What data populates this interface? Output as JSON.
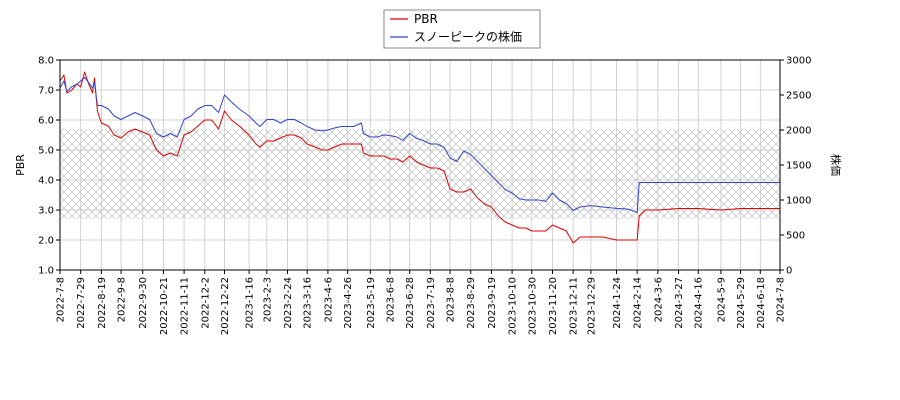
{
  "chart_data": {
    "type": "line",
    "title": "",
    "xlabel": "",
    "ylabel_left": "PBR",
    "ylabel_right": "株価",
    "ylim_left": [
      1.0,
      8.0
    ],
    "ylim_right": [
      0,
      3000
    ],
    "yticks_left": [
      "1.0",
      "2.0",
      "3.0",
      "4.0",
      "5.0",
      "6.0",
      "7.0",
      "8.0"
    ],
    "yticks_right": [
      "0",
      "500",
      "1000",
      "1500",
      "2000",
      "2500",
      "3000"
    ],
    "xlim": [
      "2022-07-08",
      "2024-07-08"
    ],
    "x_tick_labels": [
      "2022-7-8",
      "2022-7-29",
      "2022-8-19",
      "2022-9-8",
      "2022-9-30",
      "2022-10-21",
      "2022-11-11",
      "2022-12-2",
      "2022-12-22",
      "2023-1-16",
      "2023-2-3",
      "2023-2-24",
      "2023-3-16",
      "2023-4-6",
      "2023-4-26",
      "2023-5-19",
      "2023-6-8",
      "2023-6-28",
      "2023-7-19",
      "2023-8-8",
      "2023-8-29",
      "2023-9-19",
      "2023-10-10",
      "2023-10-30",
      "2023-11-20",
      "2023-12-11",
      "2023-12-29",
      "2024-1-24",
      "2024-2-14",
      "2024-3-6",
      "2024-3-27",
      "2024-4-16",
      "2024-5-9",
      "2024-5-29",
      "2024-6-18",
      "2024-7-8"
    ],
    "grid": true,
    "hatched_band_left": [
      2.7,
      5.7
    ],
    "legend": {
      "placement": "top-center",
      "entries": [
        "PBR",
        "スノーピークの株価"
      ]
    },
    "colors": {
      "PBR": "#dd0000",
      "stock": "#3344cc"
    },
    "series": [
      {
        "name": "PBR",
        "axis": "left",
        "points": [
          [
            "2022-07-08",
            7.3
          ],
          [
            "2022-07-12",
            7.5
          ],
          [
            "2022-07-15",
            6.9
          ],
          [
            "2022-07-20",
            7.0
          ],
          [
            "2022-07-25",
            7.2
          ],
          [
            "2022-07-29",
            7.1
          ],
          [
            "2022-08-02",
            7.6
          ],
          [
            "2022-08-05",
            7.3
          ],
          [
            "2022-08-10",
            6.9
          ],
          [
            "2022-08-12",
            7.4
          ],
          [
            "2022-08-15",
            6.3
          ],
          [
            "2022-08-19",
            5.9
          ],
          [
            "2022-08-26",
            5.8
          ],
          [
            "2022-09-01",
            5.5
          ],
          [
            "2022-09-08",
            5.4
          ],
          [
            "2022-09-15",
            5.6
          ],
          [
            "2022-09-22",
            5.7
          ],
          [
            "2022-09-30",
            5.6
          ],
          [
            "2022-10-07",
            5.5
          ],
          [
            "2022-10-14",
            5.0
          ],
          [
            "2022-10-21",
            4.8
          ],
          [
            "2022-10-28",
            4.9
          ],
          [
            "2022-11-04",
            4.8
          ],
          [
            "2022-11-11",
            5.5
          ],
          [
            "2022-11-18",
            5.6
          ],
          [
            "2022-11-25",
            5.8
          ],
          [
            "2022-12-02",
            6.0
          ],
          [
            "2022-12-09",
            6.0
          ],
          [
            "2022-12-16",
            5.7
          ],
          [
            "2022-12-22",
            6.3
          ],
          [
            "2022-12-29",
            6.0
          ],
          [
            "2023-01-06",
            5.8
          ],
          [
            "2023-01-16",
            5.5
          ],
          [
            "2023-01-23",
            5.2
          ],
          [
            "2023-01-27",
            5.1
          ],
          [
            "2023-02-03",
            5.3
          ],
          [
            "2023-02-10",
            5.3
          ],
          [
            "2023-02-17",
            5.4
          ],
          [
            "2023-02-24",
            5.5
          ],
          [
            "2023-03-03",
            5.5
          ],
          [
            "2023-03-10",
            5.4
          ],
          [
            "2023-03-16",
            5.2
          ],
          [
            "2023-03-24",
            5.1
          ],
          [
            "2023-03-31",
            5.0
          ],
          [
            "2023-04-06",
            5.0
          ],
          [
            "2023-04-13",
            5.1
          ],
          [
            "2023-04-20",
            5.2
          ],
          [
            "2023-04-26",
            5.2
          ],
          [
            "2023-05-02",
            5.2
          ],
          [
            "2023-05-10",
            5.2
          ],
          [
            "2023-05-12",
            4.9
          ],
          [
            "2023-05-19",
            4.8
          ],
          [
            "2023-05-26",
            4.8
          ],
          [
            "2023-06-02",
            4.8
          ],
          [
            "2023-06-08",
            4.7
          ],
          [
            "2023-06-15",
            4.7
          ],
          [
            "2023-06-21",
            4.6
          ],
          [
            "2023-06-28",
            4.8
          ],
          [
            "2023-07-05",
            4.6
          ],
          [
            "2023-07-12",
            4.5
          ],
          [
            "2023-07-19",
            4.4
          ],
          [
            "2023-07-26",
            4.4
          ],
          [
            "2023-08-02",
            4.3
          ],
          [
            "2023-08-08",
            3.7
          ],
          [
            "2023-08-15",
            3.6
          ],
          [
            "2023-08-22",
            3.6
          ],
          [
            "2023-08-29",
            3.7
          ],
          [
            "2023-09-05",
            3.4
          ],
          [
            "2023-09-12",
            3.2
          ],
          [
            "2023-09-19",
            3.1
          ],
          [
            "2023-09-26",
            2.8
          ],
          [
            "2023-10-03",
            2.6
          ],
          [
            "2023-10-10",
            2.5
          ],
          [
            "2023-10-17",
            2.4
          ],
          [
            "2023-10-24",
            2.4
          ],
          [
            "2023-10-30",
            2.3
          ],
          [
            "2023-11-06",
            2.3
          ],
          [
            "2023-11-13",
            2.3
          ],
          [
            "2023-11-20",
            2.5
          ],
          [
            "2023-11-27",
            2.4
          ],
          [
            "2023-12-04",
            2.3
          ],
          [
            "2023-12-11",
            1.9
          ],
          [
            "2023-12-18",
            2.1
          ],
          [
            "2023-12-29",
            2.1
          ],
          [
            "2024-01-10",
            2.1
          ],
          [
            "2024-01-24",
            2.0
          ],
          [
            "2024-02-05",
            2.0
          ],
          [
            "2024-02-14",
            2.0
          ],
          [
            "2024-02-16",
            2.8
          ],
          [
            "2024-02-22",
            3.0
          ],
          [
            "2024-03-06",
            3.0
          ],
          [
            "2024-03-27",
            3.05
          ],
          [
            "2024-04-16",
            3.05
          ],
          [
            "2024-05-09",
            3.0
          ],
          [
            "2024-05-29",
            3.05
          ],
          [
            "2024-06-18",
            3.05
          ],
          [
            "2024-07-08",
            3.05
          ]
        ]
      },
      {
        "name": "スノーピークの株価",
        "axis": "right",
        "points": [
          [
            "2022-07-08",
            2600
          ],
          [
            "2022-07-12",
            2700
          ],
          [
            "2022-07-15",
            2550
          ],
          [
            "2022-07-20",
            2620
          ],
          [
            "2022-07-25",
            2650
          ],
          [
            "2022-07-29",
            2700
          ],
          [
            "2022-08-02",
            2750
          ],
          [
            "2022-08-05",
            2700
          ],
          [
            "2022-08-10",
            2600
          ],
          [
            "2022-08-12",
            2680
          ],
          [
            "2022-08-15",
            2350
          ],
          [
            "2022-08-19",
            2350
          ],
          [
            "2022-08-26",
            2300
          ],
          [
            "2022-09-01",
            2200
          ],
          [
            "2022-09-08",
            2150
          ],
          [
            "2022-09-15",
            2200
          ],
          [
            "2022-09-22",
            2250
          ],
          [
            "2022-09-30",
            2200
          ],
          [
            "2022-10-07",
            2150
          ],
          [
            "2022-10-14",
            1950
          ],
          [
            "2022-10-21",
            1900
          ],
          [
            "2022-10-28",
            1950
          ],
          [
            "2022-11-04",
            1900
          ],
          [
            "2022-11-11",
            2150
          ],
          [
            "2022-11-18",
            2200
          ],
          [
            "2022-11-25",
            2300
          ],
          [
            "2022-12-02",
            2350
          ],
          [
            "2022-12-09",
            2350
          ],
          [
            "2022-12-16",
            2250
          ],
          [
            "2022-12-22",
            2500
          ],
          [
            "2022-12-29",
            2400
          ],
          [
            "2023-01-06",
            2300
          ],
          [
            "2023-01-16",
            2200
          ],
          [
            "2023-01-23",
            2100
          ],
          [
            "2023-01-27",
            2050
          ],
          [
            "2023-02-03",
            2150
          ],
          [
            "2023-02-10",
            2150
          ],
          [
            "2023-02-17",
            2100
          ],
          [
            "2023-02-24",
            2150
          ],
          [
            "2023-03-03",
            2150
          ],
          [
            "2023-03-10",
            2100
          ],
          [
            "2023-03-16",
            2050
          ],
          [
            "2023-03-24",
            2000
          ],
          [
            "2023-03-31",
            1990
          ],
          [
            "2023-04-06",
            2000
          ],
          [
            "2023-04-13",
            2030
          ],
          [
            "2023-04-20",
            2050
          ],
          [
            "2023-04-26",
            2050
          ],
          [
            "2023-05-02",
            2050
          ],
          [
            "2023-05-10",
            2100
          ],
          [
            "2023-05-12",
            1950
          ],
          [
            "2023-05-19",
            1900
          ],
          [
            "2023-05-26",
            1900
          ],
          [
            "2023-06-02",
            1930
          ],
          [
            "2023-06-08",
            1920
          ],
          [
            "2023-06-15",
            1900
          ],
          [
            "2023-06-21",
            1850
          ],
          [
            "2023-06-28",
            1950
          ],
          [
            "2023-07-05",
            1880
          ],
          [
            "2023-07-12",
            1850
          ],
          [
            "2023-07-19",
            1800
          ],
          [
            "2023-07-26",
            1800
          ],
          [
            "2023-08-02",
            1750
          ],
          [
            "2023-08-08",
            1600
          ],
          [
            "2023-08-15",
            1550
          ],
          [
            "2023-08-22",
            1700
          ],
          [
            "2023-08-29",
            1650
          ],
          [
            "2023-09-05",
            1550
          ],
          [
            "2023-09-12",
            1450
          ],
          [
            "2023-09-19",
            1350
          ],
          [
            "2023-09-26",
            1250
          ],
          [
            "2023-10-03",
            1150
          ],
          [
            "2023-10-10",
            1100
          ],
          [
            "2023-10-17",
            1020
          ],
          [
            "2023-10-24",
            1000
          ],
          [
            "2023-10-30",
            1000
          ],
          [
            "2023-11-06",
            1000
          ],
          [
            "2023-11-13",
            980
          ],
          [
            "2023-11-20",
            1100
          ],
          [
            "2023-11-27",
            1000
          ],
          [
            "2023-12-04",
            950
          ],
          [
            "2023-12-11",
            850
          ],
          [
            "2023-12-18",
            900
          ],
          [
            "2023-12-29",
            920
          ],
          [
            "2024-01-10",
            900
          ],
          [
            "2024-01-24",
            880
          ],
          [
            "2024-02-05",
            870
          ],
          [
            "2024-02-14",
            820
          ],
          [
            "2024-02-16",
            1250
          ],
          [
            "2024-02-22",
            1250
          ],
          [
            "2024-03-06",
            1250
          ],
          [
            "2024-03-27",
            1250
          ],
          [
            "2024-04-16",
            1250
          ],
          [
            "2024-05-09",
            1250
          ],
          [
            "2024-05-29",
            1250
          ],
          [
            "2024-06-18",
            1250
          ],
          [
            "2024-07-08",
            1250
          ]
        ]
      }
    ]
  }
}
